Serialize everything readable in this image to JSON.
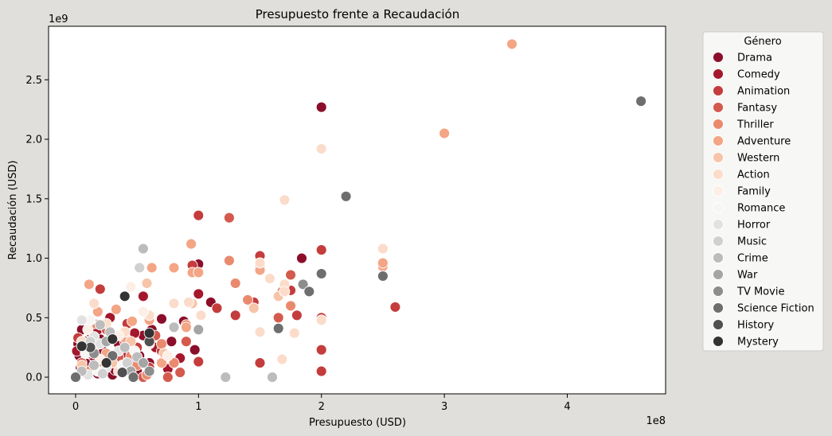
{
  "chart_data": {
    "type": "scatter",
    "title": "Presupuesto frente a Recaudación",
    "xlabel": "Presupuesto (USD)",
    "ylabel": "Recaudación (USD)",
    "x_offset_label": "1e8",
    "y_offset_label": "1e9",
    "xlim": [
      -0.22,
      4.8
    ],
    "ylim": [
      -0.14,
      2.95
    ],
    "x_ticks": [
      0,
      1,
      2,
      3,
      4
    ],
    "y_ticks": [
      0.0,
      0.5,
      1.0,
      1.5,
      2.0,
      2.5
    ],
    "x_tick_labels": [
      "0",
      "1",
      "2",
      "3",
      "4"
    ],
    "y_tick_labels": [
      "0.0",
      "0.5",
      "1.0",
      "1.5",
      "2.0",
      "2.5"
    ],
    "grid": false,
    "legend_title": "Género",
    "legend_position": "outside-right",
    "series": [
      {
        "name": "Drama",
        "color": "#8b0f2a",
        "points": [
          [
            2.0,
            2.27
          ],
          [
            1.84,
            1.0
          ],
          [
            1.1,
            0.63
          ],
          [
            1.0,
            0.95
          ],
          [
            0.97,
            0.23
          ],
          [
            0.78,
            0.3
          ],
          [
            0.7,
            0.49
          ],
          [
            0.6,
            0.12
          ],
          [
            0.55,
            0.35
          ],
          [
            0.5,
            0.05
          ],
          [
            0.45,
            0.2
          ],
          [
            0.4,
            0.1
          ],
          [
            0.35,
            0.28
          ],
          [
            0.3,
            0.02
          ],
          [
            0.25,
            0.15
          ],
          [
            0.2,
            0.32
          ],
          [
            0.15,
            0.25
          ],
          [
            0.1,
            0.05
          ],
          [
            0.05,
            0.4
          ],
          [
            0.03,
            0.18
          ],
          [
            0.12,
            0.38
          ],
          [
            0.22,
            0.22
          ],
          [
            0.32,
            0.06
          ],
          [
            0.42,
            0.3
          ],
          [
            0.52,
            0.18
          ],
          [
            0.62,
            0.4
          ],
          [
            0.88,
            0.47
          ],
          [
            0.02,
            0.28
          ],
          [
            0.08,
            0.12
          ],
          [
            0.18,
            0.03
          ]
        ]
      },
      {
        "name": "Comedy",
        "color": "#a5172c",
        "points": [
          [
            1.0,
            0.7
          ],
          [
            0.85,
            0.16
          ],
          [
            0.75,
            0.07
          ],
          [
            0.65,
            0.25
          ],
          [
            0.55,
            0.68
          ],
          [
            0.45,
            0.12
          ],
          [
            0.38,
            0.2
          ],
          [
            0.28,
            0.5
          ],
          [
            0.22,
            0.08
          ],
          [
            0.14,
            0.18
          ],
          [
            0.08,
            0.3
          ],
          [
            0.04,
            0.08
          ],
          [
            0.01,
            0.22
          ],
          [
            0.18,
            0.4
          ],
          [
            0.48,
            0.37
          ]
        ]
      },
      {
        "name": "Animation",
        "color": "#c43c3c",
        "points": [
          [
            1.0,
            1.36
          ],
          [
            1.0,
            0.13
          ],
          [
            0.95,
            0.94
          ],
          [
            1.5,
            1.02
          ],
          [
            2.0,
            1.07
          ],
          [
            2.0,
            0.5
          ],
          [
            2.0,
            0.23
          ],
          [
            2.0,
            0.05
          ],
          [
            2.6,
            0.59
          ],
          [
            1.5,
            0.12
          ],
          [
            1.8,
            0.52
          ],
          [
            1.75,
            0.73
          ],
          [
            1.45,
            0.63
          ],
          [
            1.3,
            0.52
          ],
          [
            1.15,
            0.58
          ],
          [
            0.9,
            0.42
          ],
          [
            0.7,
            0.22
          ],
          [
            0.6,
            0.08
          ],
          [
            0.5,
            0.25
          ],
          [
            0.42,
            0.45
          ],
          [
            0.2,
            0.74
          ],
          [
            0.1,
            0.2
          ],
          [
            0.02,
            0.33
          ],
          [
            0.3,
            0.14
          ]
        ]
      },
      {
        "name": "Fantasy",
        "color": "#d45a4e",
        "points": [
          [
            1.25,
            1.34
          ],
          [
            1.75,
            0.86
          ],
          [
            1.65,
            0.5
          ],
          [
            0.9,
            0.3
          ],
          [
            0.85,
            0.04
          ],
          [
            0.75,
            0.0
          ],
          [
            0.6,
            0.48
          ],
          [
            0.4,
            0.3
          ],
          [
            0.35,
            0.17
          ],
          [
            0.25,
            0.4
          ],
          [
            0.15,
            0.3
          ],
          [
            0.05,
            0.12
          ],
          [
            0.55,
            0.0
          ],
          [
            0.65,
            0.35
          ]
        ]
      },
      {
        "name": "Thriller",
        "color": "#e98a6e",
        "points": [
          [
            1.25,
            0.98
          ],
          [
            1.3,
            0.79
          ],
          [
            1.4,
            0.65
          ],
          [
            1.68,
            0.72
          ],
          [
            1.75,
            0.6
          ],
          [
            0.9,
            0.44
          ],
          [
            0.8,
            0.12
          ],
          [
            0.7,
            0.28
          ],
          [
            0.5,
            0.1
          ],
          [
            0.3,
            0.33
          ],
          [
            0.2,
            0.1
          ],
          [
            0.1,
            0.05
          ],
          [
            0.15,
            0.45
          ],
          [
            0.45,
            0.18
          ],
          [
            0.58,
            0.02
          ]
        ]
      },
      {
        "name": "Adventure",
        "color": "#f3a585",
        "points": [
          [
            3.55,
            2.8
          ],
          [
            3.0,
            2.05
          ],
          [
            0.94,
            1.12
          ],
          [
            0.8,
            0.92
          ],
          [
            0.62,
            0.92
          ],
          [
            1.5,
            0.93
          ],
          [
            2.5,
            0.93
          ],
          [
            2.5,
            0.96
          ],
          [
            0.95,
            0.88
          ],
          [
            1.0,
            0.88
          ],
          [
            0.46,
            0.47
          ],
          [
            0.33,
            0.57
          ],
          [
            0.11,
            0.78
          ],
          [
            0.18,
            0.55
          ],
          [
            0.9,
            0.42
          ],
          [
            0.7,
            0.12
          ],
          [
            0.25,
            0.2
          ],
          [
            0.4,
            0.33
          ],
          [
            0.6,
            0.48
          ],
          [
            1.5,
            0.9
          ]
        ]
      },
      {
        "name": "Western",
        "color": "#f7c4a8",
        "points": [
          [
            0.58,
            0.79
          ],
          [
            0.25,
            0.45
          ],
          [
            0.15,
            0.25
          ],
          [
            0.05,
            0.1
          ],
          [
            0.3,
            0.12
          ],
          [
            0.45,
            0.3
          ],
          [
            1.45,
            0.58
          ],
          [
            1.65,
            0.68
          ],
          [
            0.95,
            0.62
          ],
          [
            0.72,
            0.2
          ]
        ]
      },
      {
        "name": "Action",
        "color": "#fbdcca",
        "points": [
          [
            2.0,
            1.92
          ],
          [
            1.7,
            1.49
          ],
          [
            2.5,
            1.08
          ],
          [
            1.5,
            0.96
          ],
          [
            1.58,
            0.83
          ],
          [
            1.7,
            0.78
          ],
          [
            1.7,
            0.72
          ],
          [
            1.5,
            0.38
          ],
          [
            1.78,
            0.37
          ],
          [
            1.68,
            0.15
          ],
          [
            2.0,
            0.48
          ],
          [
            0.92,
            0.63
          ],
          [
            1.02,
            0.52
          ],
          [
            0.8,
            0.62
          ],
          [
            0.6,
            0.52
          ],
          [
            0.4,
            0.38
          ],
          [
            0.25,
            0.45
          ],
          [
            0.15,
            0.62
          ],
          [
            0.05,
            0.3
          ],
          [
            0.35,
            0.05
          ]
        ]
      },
      {
        "name": "Family",
        "color": "#fdeee6",
        "points": [
          [
            0.45,
            0.76
          ],
          [
            0.35,
            0.35
          ],
          [
            0.2,
            0.15
          ],
          [
            0.1,
            0.4
          ],
          [
            0.6,
            0.28
          ],
          [
            0.75,
            0.18
          ],
          [
            0.55,
            0.55
          ]
        ]
      },
      {
        "name": "Romance",
        "color": "#f7f6f5",
        "points": [
          [
            0.28,
            0.32
          ],
          [
            0.18,
            0.05
          ],
          [
            0.08,
            0.2
          ],
          [
            0.38,
            0.1
          ],
          [
            0.48,
            0.22
          ],
          [
            0.12,
            0.48
          ]
        ]
      },
      {
        "name": "Horror",
        "color": "#e2e2e2",
        "points": [
          [
            0.05,
            0.48
          ],
          [
            0.15,
            0.34
          ],
          [
            0.25,
            0.08
          ],
          [
            0.35,
            0.22
          ],
          [
            0.1,
            0.02
          ],
          [
            0.2,
            0.28
          ]
        ]
      },
      {
        "name": "Music",
        "color": "#d0d0d0",
        "points": [
          [
            0.52,
            0.92
          ],
          [
            0.3,
            0.18
          ],
          [
            0.12,
            0.3
          ],
          [
            0.22,
            0.03
          ],
          [
            0.42,
            0.12
          ]
        ]
      },
      {
        "name": "Crime",
        "color": "#bcbcbc",
        "points": [
          [
            0.55,
            1.08
          ],
          [
            1.22,
            0.0
          ],
          [
            1.6,
            0.0
          ],
          [
            0.8,
            0.42
          ],
          [
            0.4,
            0.25
          ],
          [
            0.2,
            0.44
          ],
          [
            0.15,
            0.1
          ],
          [
            0.5,
            0.17
          ],
          [
            0.28,
            0.38
          ],
          [
            0.05,
            0.05
          ]
        ]
      },
      {
        "name": "War",
        "color": "#a5a5a5",
        "points": [
          [
            1.0,
            0.4
          ],
          [
            0.55,
            0.12
          ],
          [
            0.25,
            0.3
          ],
          [
            0.45,
            0.05
          ]
        ]
      },
      {
        "name": "TV Movie",
        "color": "#8d8d8d",
        "points": [
          [
            1.85,
            0.78
          ],
          [
            0.15,
            0.2
          ],
          [
            0.6,
            0.05
          ]
        ]
      },
      {
        "name": "Science Fiction",
        "color": "#6e6e6e",
        "points": [
          [
            4.6,
            2.32
          ],
          [
            2.2,
            1.52
          ],
          [
            2.0,
            0.87
          ],
          [
            2.5,
            0.85
          ],
          [
            1.9,
            0.72
          ],
          [
            1.65,
            0.41
          ],
          [
            0.3,
            0.18
          ],
          [
            0.0,
            0.0
          ],
          [
            0.47,
            0.0
          ]
        ]
      },
      {
        "name": "History",
        "color": "#505050",
        "points": [
          [
            0.12,
            0.25
          ],
          [
            0.38,
            0.04
          ],
          [
            0.6,
            0.3
          ]
        ]
      },
      {
        "name": "Mystery",
        "color": "#333333",
        "points": [
          [
            0.4,
            0.68
          ],
          [
            0.6,
            0.37
          ],
          [
            0.05,
            0.26
          ],
          [
            0.3,
            0.32
          ],
          [
            0.25,
            0.12
          ]
        ]
      }
    ]
  }
}
